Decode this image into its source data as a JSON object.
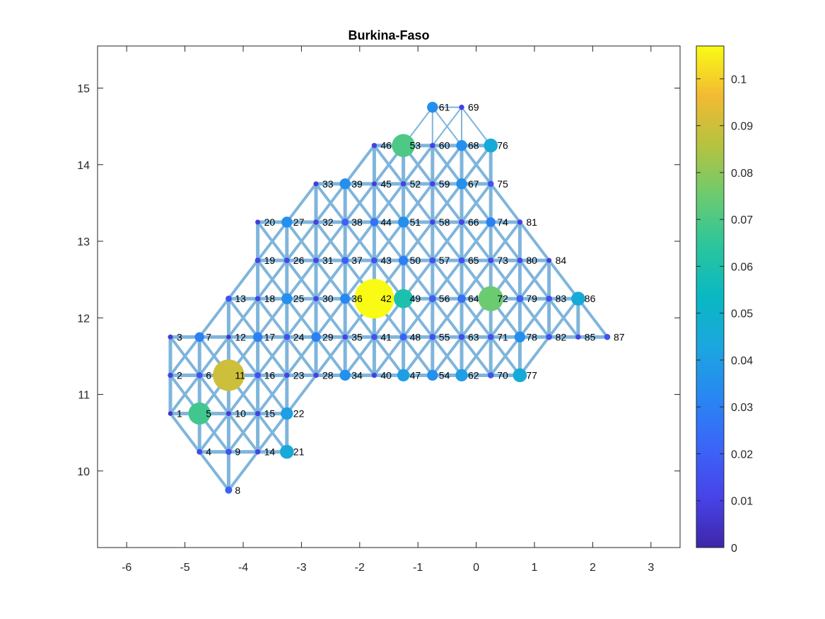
{
  "chart_data": {
    "type": "scatter",
    "title": "Burkina-Faso",
    "xlabel": "",
    "ylabel": "",
    "xlim": [
      -6.5,
      3.5
    ],
    "ylim": [
      9.0,
      15.55
    ],
    "x_ticks": [
      -6,
      -5,
      -4,
      -3,
      -2,
      -1,
      0,
      1,
      2,
      3
    ],
    "y_ticks": [
      10,
      11,
      12,
      13,
      14,
      15
    ],
    "colorbar": {
      "range": [
        0,
        0.107
      ],
      "ticks": [
        0,
        0.01,
        0.02,
        0.03,
        0.04,
        0.05,
        0.06,
        0.07,
        0.08,
        0.09,
        0.1
      ],
      "tick_labels": [
        "0",
        "0.01",
        "0.02",
        "0.03",
        "0.04",
        "0.05",
        "0.06",
        "0.07",
        "0.08",
        "0.09",
        "0.1"
      ],
      "colormap": "parula"
    },
    "edge_color": "#7fb5dc",
    "nodes": [
      {
        "id": 1,
        "x": -5.25,
        "y": 10.75,
        "v": 0.005
      },
      {
        "id": 2,
        "x": -5.25,
        "y": 11.25,
        "v": 0.01
      },
      {
        "id": 3,
        "x": -5.25,
        "y": 11.75,
        "v": 0.008
      },
      {
        "id": 4,
        "x": -4.75,
        "y": 10.25,
        "v": 0.012
      },
      {
        "id": 5,
        "x": -4.75,
        "y": 10.75,
        "v": 0.068
      },
      {
        "id": 6,
        "x": -4.75,
        "y": 11.25,
        "v": 0.015
      },
      {
        "id": 7,
        "x": -4.75,
        "y": 11.75,
        "v": 0.03
      },
      {
        "id": 8,
        "x": -4.25,
        "y": 9.75,
        "v": 0.02
      },
      {
        "id": 9,
        "x": -4.25,
        "y": 10.25,
        "v": 0.015
      },
      {
        "id": 10,
        "x": -4.25,
        "y": 10.75,
        "v": 0.008
      },
      {
        "id": 11,
        "x": -4.25,
        "y": 11.25,
        "v": 0.09
      },
      {
        "id": 12,
        "x": -4.25,
        "y": 11.75,
        "v": 0.005
      },
      {
        "id": 13,
        "x": -4.25,
        "y": 12.25,
        "v": 0.015
      },
      {
        "id": 14,
        "x": -3.75,
        "y": 10.25,
        "v": 0.01
      },
      {
        "id": 15,
        "x": -3.75,
        "y": 10.75,
        "v": 0.01
      },
      {
        "id": 16,
        "x": -3.75,
        "y": 11.25,
        "v": 0.015
      },
      {
        "id": 17,
        "x": -3.75,
        "y": 11.75,
        "v": 0.03
      },
      {
        "id": 18,
        "x": -3.75,
        "y": 12.25,
        "v": 0.01
      },
      {
        "id": 19,
        "x": -3.75,
        "y": 12.75,
        "v": 0.012
      },
      {
        "id": 20,
        "x": -3.75,
        "y": 13.25,
        "v": 0.008
      },
      {
        "id": 21,
        "x": -3.25,
        "y": 10.25,
        "v": 0.045
      },
      {
        "id": 22,
        "x": -3.25,
        "y": 10.75,
        "v": 0.04
      },
      {
        "id": 23,
        "x": -3.25,
        "y": 11.25,
        "v": 0.01
      },
      {
        "id": 24,
        "x": -3.25,
        "y": 11.75,
        "v": 0.015
      },
      {
        "id": 25,
        "x": -3.25,
        "y": 12.25,
        "v": 0.035
      },
      {
        "id": 26,
        "x": -3.25,
        "y": 12.75,
        "v": 0.012
      },
      {
        "id": 27,
        "x": -3.25,
        "y": 13.25,
        "v": 0.035
      },
      {
        "id": 28,
        "x": -2.75,
        "y": 11.25,
        "v": 0.01
      },
      {
        "id": 29,
        "x": -2.75,
        "y": 11.75,
        "v": 0.03
      },
      {
        "id": 30,
        "x": -2.75,
        "y": 12.25,
        "v": 0.01
      },
      {
        "id": 31,
        "x": -2.75,
        "y": 12.75,
        "v": 0.012
      },
      {
        "id": 32,
        "x": -2.75,
        "y": 13.25,
        "v": 0.01
      },
      {
        "id": 33,
        "x": -2.75,
        "y": 13.75,
        "v": 0.008
      },
      {
        "id": 34,
        "x": -2.25,
        "y": 11.25,
        "v": 0.035
      },
      {
        "id": 35,
        "x": -2.25,
        "y": 11.75,
        "v": 0.01
      },
      {
        "id": 36,
        "x": -2.25,
        "y": 12.25,
        "v": 0.032
      },
      {
        "id": 37,
        "x": -2.25,
        "y": 12.75,
        "v": 0.02
      },
      {
        "id": 38,
        "x": -2.25,
        "y": 13.25,
        "v": 0.02
      },
      {
        "id": 39,
        "x": -2.25,
        "y": 13.75,
        "v": 0.035
      },
      {
        "id": 40,
        "x": -1.75,
        "y": 11.25,
        "v": 0.01
      },
      {
        "id": 41,
        "x": -1.75,
        "y": 11.75,
        "v": 0.015
      },
      {
        "id": 42,
        "x": -1.75,
        "y": 12.25,
        "v": 0.107
      },
      {
        "id": 43,
        "x": -1.75,
        "y": 12.75,
        "v": 0.015
      },
      {
        "id": 44,
        "x": -1.75,
        "y": 13.25,
        "v": 0.025
      },
      {
        "id": 45,
        "x": -1.75,
        "y": 13.75,
        "v": 0.008
      },
      {
        "id": 46,
        "x": -1.75,
        "y": 14.25,
        "v": 0.01
      },
      {
        "id": 47,
        "x": -1.25,
        "y": 11.25,
        "v": 0.04
      },
      {
        "id": 48,
        "x": -1.25,
        "y": 11.75,
        "v": 0.02
      },
      {
        "id": 49,
        "x": -1.25,
        "y": 12.25,
        "v": 0.06
      },
      {
        "id": 50,
        "x": -1.25,
        "y": 12.75,
        "v": 0.03
      },
      {
        "id": 51,
        "x": -1.25,
        "y": 13.25,
        "v": 0.035
      },
      {
        "id": 52,
        "x": -1.25,
        "y": 13.75,
        "v": 0.01
      },
      {
        "id": 53,
        "x": -1.25,
        "y": 14.25,
        "v": 0.07
      },
      {
        "id": 54,
        "x": -0.75,
        "y": 11.25,
        "v": 0.035
      },
      {
        "id": 55,
        "x": -0.75,
        "y": 11.75,
        "v": 0.015
      },
      {
        "id": 56,
        "x": -0.75,
        "y": 12.25,
        "v": 0.02
      },
      {
        "id": 57,
        "x": -0.75,
        "y": 12.75,
        "v": 0.015
      },
      {
        "id": 58,
        "x": -0.75,
        "y": 13.25,
        "v": 0.01
      },
      {
        "id": 59,
        "x": -0.75,
        "y": 13.75,
        "v": 0.01
      },
      {
        "id": 60,
        "x": -0.75,
        "y": 14.25,
        "v": 0.01
      },
      {
        "id": 61,
        "x": -0.75,
        "y": 14.75,
        "v": 0.035
      },
      {
        "id": 62,
        "x": -0.25,
        "y": 11.25,
        "v": 0.04
      },
      {
        "id": 63,
        "x": -0.25,
        "y": 11.75,
        "v": 0.015
      },
      {
        "id": 64,
        "x": -0.25,
        "y": 12.25,
        "v": 0.025
      },
      {
        "id": 65,
        "x": -0.25,
        "y": 12.75,
        "v": 0.015
      },
      {
        "id": 66,
        "x": -0.25,
        "y": 13.25,
        "v": 0.012
      },
      {
        "id": 67,
        "x": -0.25,
        "y": 13.75,
        "v": 0.035
      },
      {
        "id": 68,
        "x": -0.25,
        "y": 14.25,
        "v": 0.035
      },
      {
        "id": 69,
        "x": -0.25,
        "y": 14.75,
        "v": 0.01
      },
      {
        "id": 70,
        "x": 0.25,
        "y": 11.25,
        "v": 0.015
      },
      {
        "id": 71,
        "x": 0.25,
        "y": 11.75,
        "v": 0.015
      },
      {
        "id": 72,
        "x": 0.25,
        "y": 12.25,
        "v": 0.075
      },
      {
        "id": 73,
        "x": 0.25,
        "y": 12.75,
        "v": 0.012
      },
      {
        "id": 74,
        "x": 0.25,
        "y": 13.25,
        "v": 0.03
      },
      {
        "id": 75,
        "x": 0.25,
        "y": 13.75,
        "v": 0.015
      },
      {
        "id": 76,
        "x": 0.25,
        "y": 14.25,
        "v": 0.045
      },
      {
        "id": 77,
        "x": 0.75,
        "y": 11.25,
        "v": 0.045
      },
      {
        "id": 78,
        "x": 0.75,
        "y": 11.75,
        "v": 0.035
      },
      {
        "id": 79,
        "x": 0.75,
        "y": 12.25,
        "v": 0.02
      },
      {
        "id": 80,
        "x": 0.75,
        "y": 12.75,
        "v": 0.012
      },
      {
        "id": 81,
        "x": 0.75,
        "y": 13.25,
        "v": 0.01
      },
      {
        "id": 82,
        "x": 1.25,
        "y": 11.75,
        "v": 0.015
      },
      {
        "id": 83,
        "x": 1.25,
        "y": 12.25,
        "v": 0.015
      },
      {
        "id": 84,
        "x": 1.25,
        "y": 12.75,
        "v": 0.008
      },
      {
        "id": 85,
        "x": 1.75,
        "y": 11.75,
        "v": 0.01
      },
      {
        "id": 86,
        "x": 1.75,
        "y": 12.25,
        "v": 0.045
      },
      {
        "id": 87,
        "x": 2.25,
        "y": 11.75,
        "v": 0.015
      }
    ]
  }
}
